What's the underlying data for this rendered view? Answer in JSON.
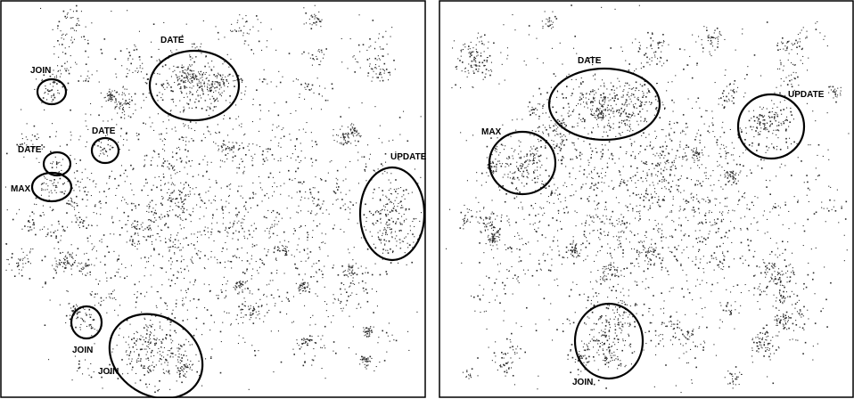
{
  "chart_data": [
    {
      "type": "scatter",
      "title": "",
      "xlabel": "",
      "ylabel": "",
      "grid": false,
      "legend": "none",
      "point_color": "#2b2b2b",
      "annotations": [
        {
          "label": "DATE",
          "cluster": [
            0.45,
            0.21
          ]
        },
        {
          "label": "JOIN",
          "cluster": [
            0.11,
            0.23
          ]
        },
        {
          "label": "DATE",
          "cluster": [
            0.24,
            0.38
          ]
        },
        {
          "label": "DATE",
          "cluster": [
            0.13,
            0.41
          ]
        },
        {
          "label": "MAX",
          "cluster": [
            0.12,
            0.47
          ]
        },
        {
          "label": "UPDATE",
          "cluster": [
            0.93,
            0.54
          ]
        },
        {
          "label": "JOIN",
          "cluster": [
            0.2,
            0.81
          ]
        },
        {
          "label": "JOIN",
          "cluster": [
            0.36,
            0.9
          ]
        }
      ]
    },
    {
      "type": "scatter",
      "title": "",
      "xlabel": "",
      "ylabel": "",
      "grid": false,
      "legend": "none",
      "point_color": "#2b2b2b",
      "annotations": [
        {
          "label": "DATE",
          "cluster": [
            0.4,
            0.26
          ]
        },
        {
          "label": "MAX",
          "cluster": [
            0.14,
            0.41
          ]
        },
        {
          "label": "UPDATE",
          "cluster": [
            0.77,
            0.32
          ]
        },
        {
          "label": "JOIN",
          "cluster": [
            0.41,
            0.86
          ]
        }
      ]
    }
  ]
}
